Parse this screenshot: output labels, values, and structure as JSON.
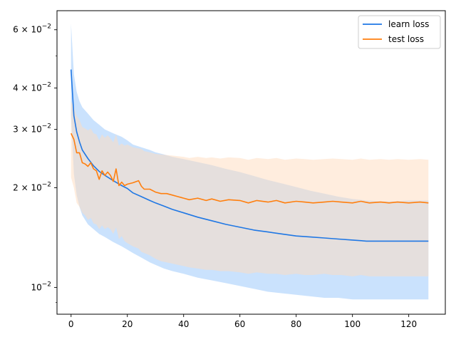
{
  "chart_data": {
    "type": "line",
    "title": "",
    "xlabel": "",
    "ylabel": "",
    "y_scale": "log",
    "xlim": [
      -5,
      133
    ],
    "ylim": [
      0.0083,
      0.0685
    ],
    "grid": false,
    "legend_placement": "top-right",
    "x_ticks": [
      0,
      20,
      40,
      60,
      80,
      100,
      120
    ],
    "y_ticks": [
      {
        "value": 0.01,
        "base": "10",
        "exp": "−2"
      },
      {
        "value": 0.02,
        "base": "2 × 10",
        "exp": "−2"
      },
      {
        "value": 0.03,
        "base": "3 × 10",
        "exp": "−2"
      },
      {
        "value": 0.04,
        "base": "4 × 10",
        "exp": "−2"
      },
      {
        "value": 0.06,
        "base": "6 × 10",
        "exp": "−2"
      }
    ],
    "series": [
      {
        "name": "learn loss",
        "color": "#1f77e4",
        "band_color": "#9fcbfb",
        "x": [
          0,
          1,
          2,
          3,
          4,
          6,
          8,
          10,
          12,
          15,
          18,
          20,
          22,
          25,
          28,
          30,
          33,
          36,
          40,
          45,
          50,
          55,
          60,
          65,
          70,
          75,
          80,
          85,
          90,
          95,
          100,
          105,
          110,
          115,
          120,
          125,
          127
        ],
        "y": [
          0.0455,
          0.033,
          0.0295,
          0.0275,
          0.026,
          0.0245,
          0.0233,
          0.0224,
          0.0218,
          0.021,
          0.0203,
          0.0199,
          0.0193,
          0.0188,
          0.0183,
          0.018,
          0.0176,
          0.0172,
          0.0168,
          0.0163,
          0.0159,
          0.0155,
          0.0152,
          0.0149,
          0.0147,
          0.0145,
          0.0143,
          0.0142,
          0.0141,
          0.014,
          0.0139,
          0.0138,
          0.0138,
          0.0138,
          0.0138,
          0.0138,
          0.0138
        ],
        "lower": [
          0.033,
          0.022,
          0.019,
          0.0175,
          0.0165,
          0.0155,
          0.015,
          0.0145,
          0.0142,
          0.0137,
          0.0133,
          0.013,
          0.0127,
          0.0123,
          0.0119,
          0.0117,
          0.0114,
          0.0112,
          0.011,
          0.0107,
          0.0105,
          0.0103,
          0.0101,
          0.0099,
          0.0097,
          0.0096,
          0.0095,
          0.0094,
          0.0093,
          0.0093,
          0.0092,
          0.0092,
          0.0092,
          0.0092,
          0.0092,
          0.0092,
          0.0092
        ],
        "upper": [
          0.0625,
          0.044,
          0.039,
          0.0365,
          0.035,
          0.0335,
          0.032,
          0.031,
          0.03,
          0.0292,
          0.0285,
          0.0278,
          0.027,
          0.0265,
          0.026,
          0.0256,
          0.0252,
          0.0248,
          0.0244,
          0.0239,
          0.0234,
          0.0228,
          0.0223,
          0.0217,
          0.0211,
          0.0206,
          0.0201,
          0.0196,
          0.0192,
          0.0188,
          0.0185,
          0.0183,
          0.0182,
          0.0182,
          0.0183,
          0.0183,
          0.0183
        ]
      },
      {
        "name": "test loss",
        "color": "#ff7f0e",
        "band_color": "#ffdcbd",
        "x": [
          0,
          1,
          2,
          3,
          4,
          5,
          6,
          7,
          8,
          9,
          10,
          11,
          12,
          13,
          14,
          15,
          16,
          17,
          18,
          19,
          20,
          22,
          24,
          25,
          26,
          28,
          30,
          32,
          34,
          36,
          38,
          40,
          42,
          45,
          48,
          50,
          53,
          56,
          60,
          63,
          66,
          70,
          73,
          76,
          80,
          83,
          86,
          90,
          93,
          96,
          100,
          103,
          106,
          110,
          113,
          116,
          120,
          124,
          127
        ],
        "y": [
          0.0292,
          0.028,
          0.0255,
          0.0255,
          0.0238,
          0.0236,
          0.0232,
          0.0238,
          0.0228,
          0.0225,
          0.0212,
          0.0225,
          0.0218,
          0.0223,
          0.0218,
          0.0209,
          0.0228,
          0.0203,
          0.0208,
          0.0203,
          0.0205,
          0.0207,
          0.021,
          0.0202,
          0.0198,
          0.0198,
          0.0194,
          0.0192,
          0.0192,
          0.019,
          0.0188,
          0.0186,
          0.0184,
          0.0186,
          0.0183,
          0.0185,
          0.0182,
          0.0184,
          0.0183,
          0.018,
          0.0183,
          0.0181,
          0.0183,
          0.018,
          0.0182,
          0.0181,
          0.018,
          0.0181,
          0.0182,
          0.0181,
          0.018,
          0.0182,
          0.018,
          0.0181,
          0.018,
          0.0181,
          0.018,
          0.0181,
          0.018
        ],
        "lower": [
          0.0215,
          0.02,
          0.018,
          0.0175,
          0.0168,
          0.0165,
          0.016,
          0.0162,
          0.0156,
          0.0155,
          0.015,
          0.0154,
          0.015,
          0.0152,
          0.015,
          0.0145,
          0.0152,
          0.014,
          0.0143,
          0.0138,
          0.0136,
          0.0133,
          0.0131,
          0.0128,
          0.0127,
          0.0125,
          0.0122,
          0.012,
          0.0119,
          0.0118,
          0.0117,
          0.0116,
          0.0115,
          0.0114,
          0.0113,
          0.0113,
          0.0112,
          0.0112,
          0.0111,
          0.011,
          0.0111,
          0.011,
          0.011,
          0.0109,
          0.011,
          0.0109,
          0.0109,
          0.011,
          0.0109,
          0.0109,
          0.0108,
          0.0109,
          0.0108,
          0.0108,
          0.0108,
          0.0108,
          0.0108,
          0.0108,
          0.0108
        ],
        "upper": [
          0.0365,
          0.035,
          0.033,
          0.032,
          0.0305,
          0.0302,
          0.0298,
          0.0302,
          0.0292,
          0.029,
          0.0278,
          0.029,
          0.0283,
          0.0288,
          0.0282,
          0.0274,
          0.029,
          0.0268,
          0.0272,
          0.0268,
          0.027,
          0.0265,
          0.0263,
          0.0262,
          0.0258,
          0.0256,
          0.0253,
          0.0252,
          0.0251,
          0.025,
          0.0249,
          0.0248,
          0.0246,
          0.0248,
          0.0246,
          0.0247,
          0.0245,
          0.0247,
          0.0246,
          0.0243,
          0.0246,
          0.0244,
          0.0246,
          0.0243,
          0.0245,
          0.0244,
          0.0243,
          0.0244,
          0.0245,
          0.0244,
          0.0243,
          0.0245,
          0.0243,
          0.0244,
          0.0243,
          0.0244,
          0.0243,
          0.0244,
          0.0243
        ]
      }
    ]
  }
}
